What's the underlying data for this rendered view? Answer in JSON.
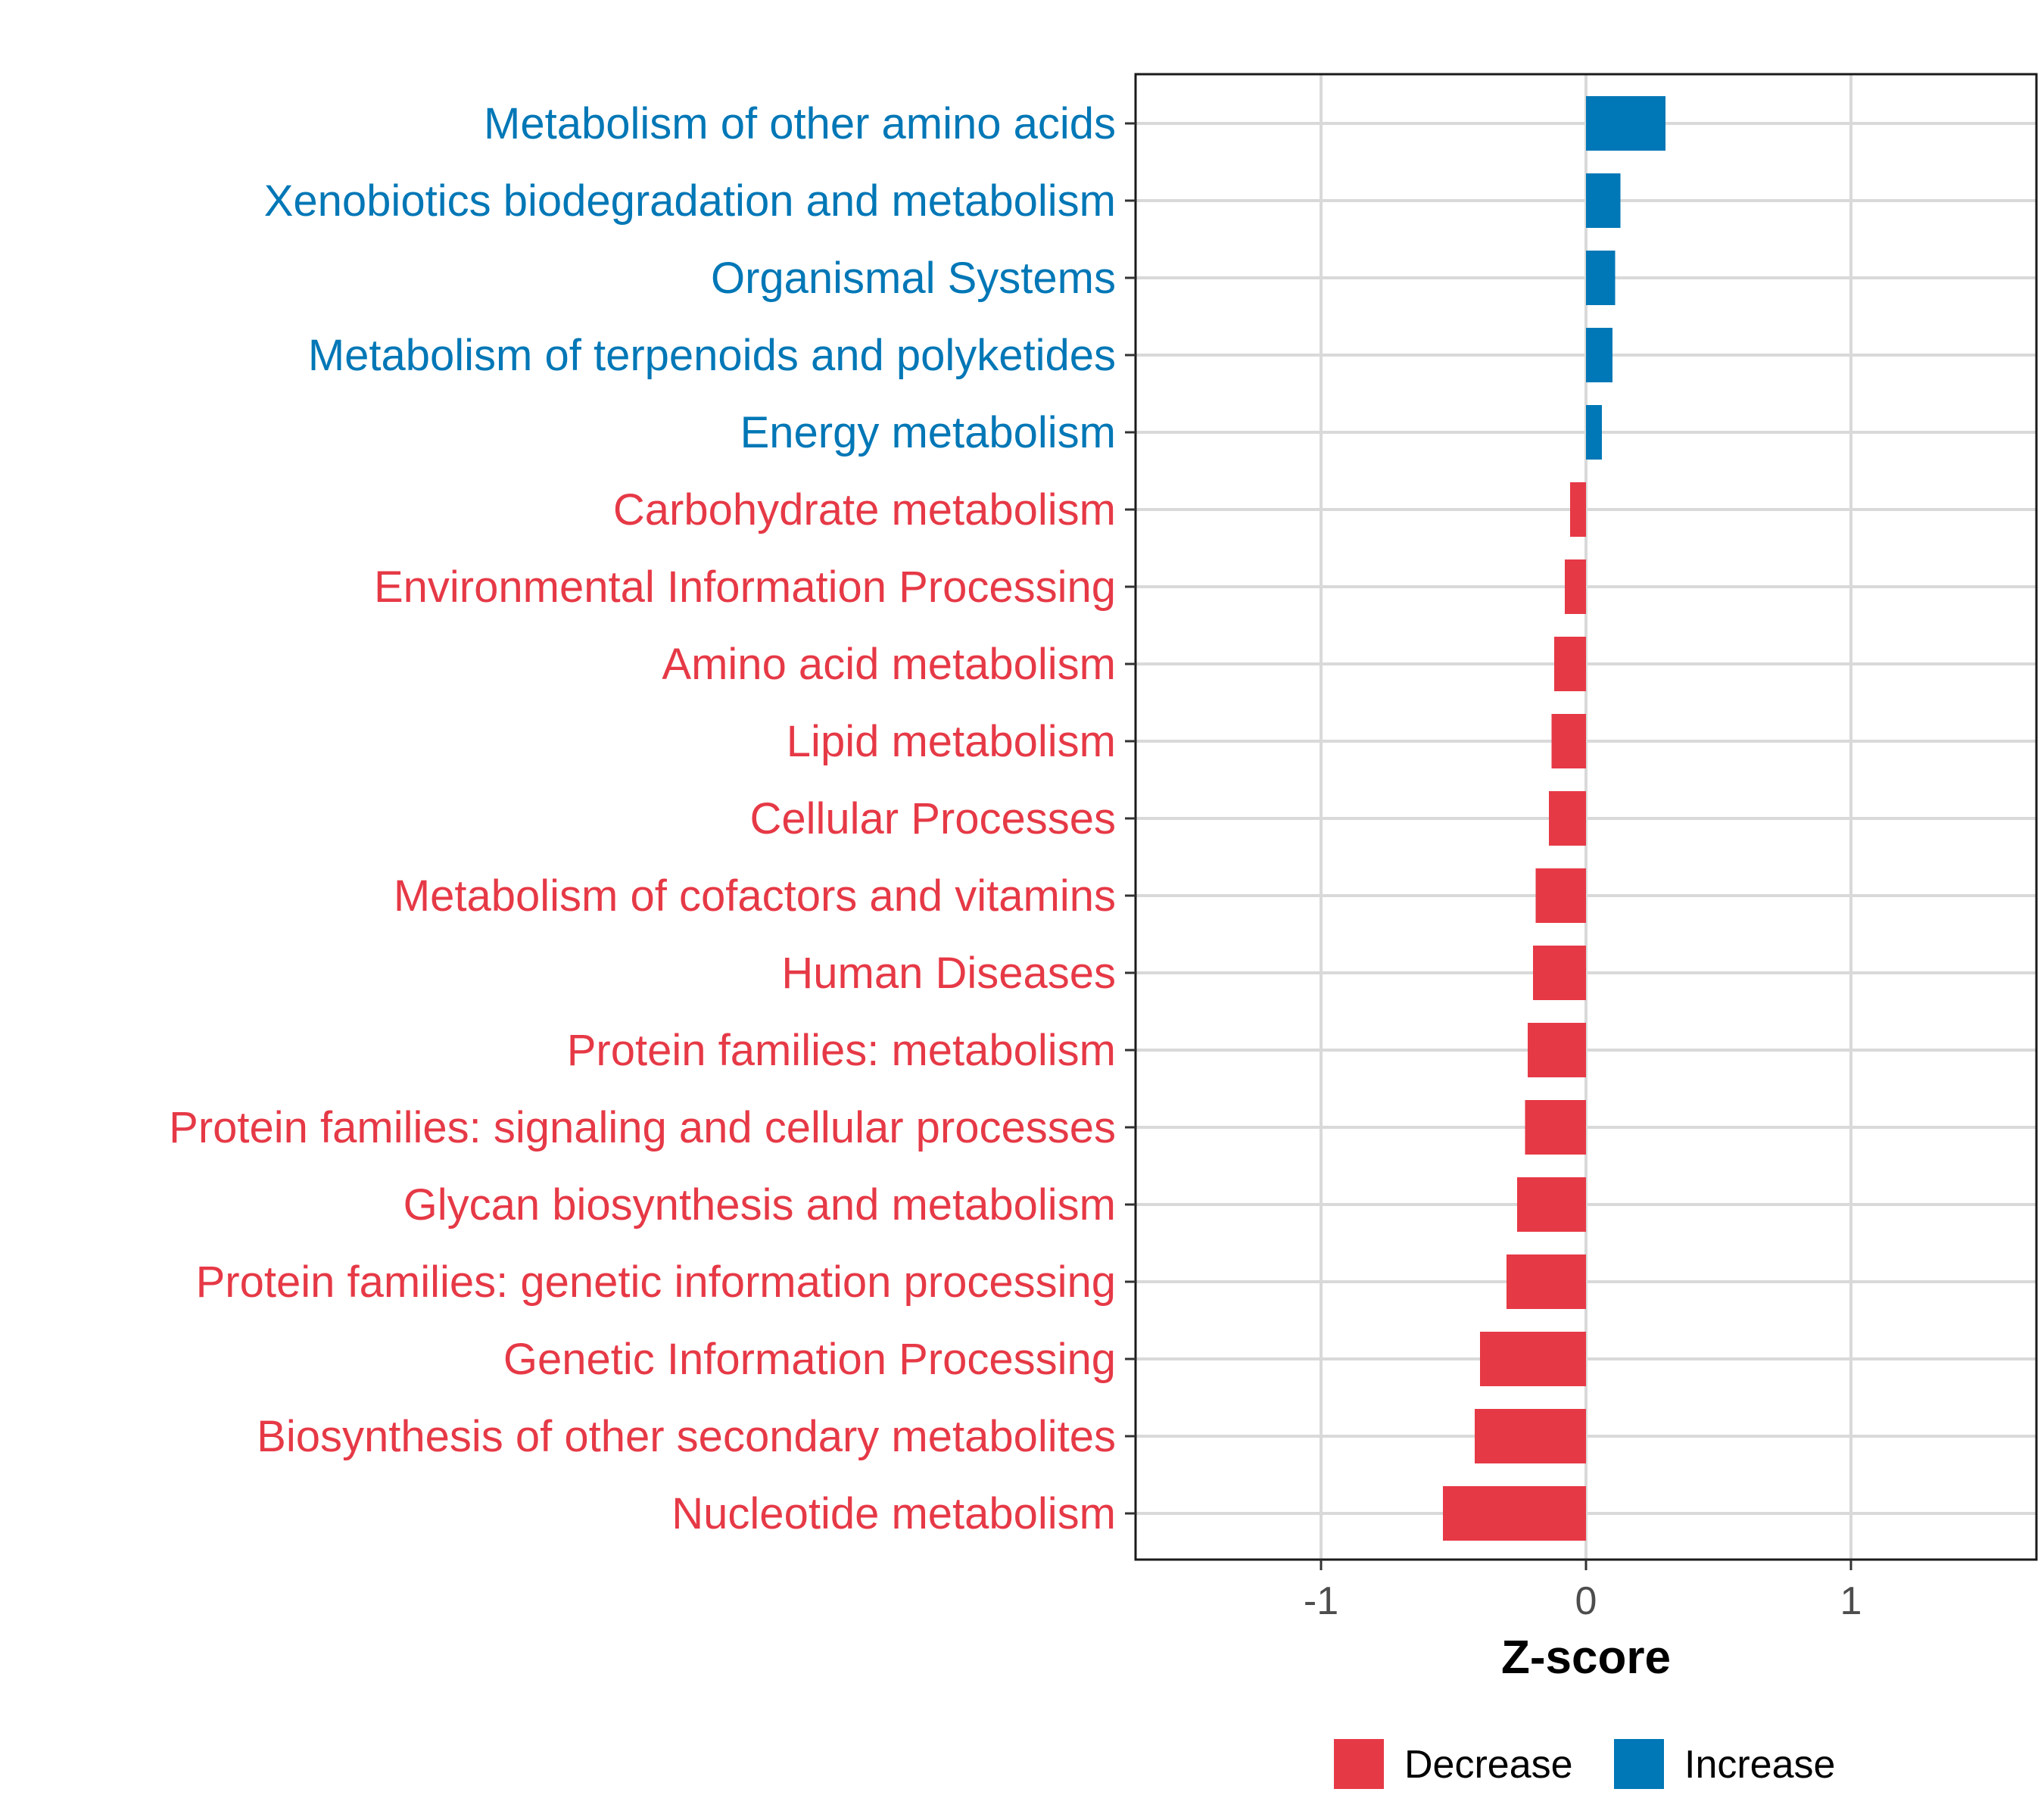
{
  "chart_data": {
    "type": "bar",
    "orientation": "horizontal",
    "title": "",
    "xlabel": "Z-score",
    "ylabel": "",
    "xlim": [
      -1.7,
      1.7
    ],
    "xticks": [
      -1,
      0,
      1
    ],
    "xtick_labels": [
      "-1",
      "0",
      "1"
    ],
    "grid": true,
    "legend_position": "bottom",
    "categories": [
      "Metabolism of other amino acids",
      "Xenobiotics biodegradation and metabolism",
      "Organismal Systems",
      "Metabolism of terpenoids and polyketides",
      "Energy metabolism",
      "Carbohydrate metabolism",
      "Environmental Information Processing",
      "Amino acid metabolism",
      "Lipid metabolism",
      "Cellular Processes",
      "Metabolism of cofactors and vitamins",
      "Human Diseases",
      "Protein families: metabolism",
      "Protein families: signaling and cellular processes",
      "Glycan biosynthesis and metabolism",
      "Protein families: genetic information processing",
      "Genetic Information Processing",
      "Biosynthesis of other secondary metabolites",
      "Nucleotide metabolism"
    ],
    "values": [
      0.3,
      0.13,
      0.11,
      0.1,
      0.06,
      -0.06,
      -0.08,
      -0.12,
      -0.13,
      -0.14,
      -0.19,
      -0.2,
      -0.22,
      -0.23,
      -0.26,
      -0.3,
      -0.4,
      -0.42,
      -0.54
    ],
    "groups": [
      "Increase",
      "Increase",
      "Increase",
      "Increase",
      "Increase",
      "Decrease",
      "Decrease",
      "Decrease",
      "Decrease",
      "Decrease",
      "Decrease",
      "Decrease",
      "Decrease",
      "Decrease",
      "Decrease",
      "Decrease",
      "Decrease",
      "Decrease",
      "Decrease"
    ],
    "legend": [
      {
        "label": "Decrease",
        "color": "#e63946"
      },
      {
        "label": "Increase",
        "color": "#0077b6"
      }
    ]
  },
  "colors": {
    "decrease": "#e63946",
    "increase": "#0077b6",
    "grid": "#d9d9d9",
    "panel_border": "#1a1a1a"
  }
}
